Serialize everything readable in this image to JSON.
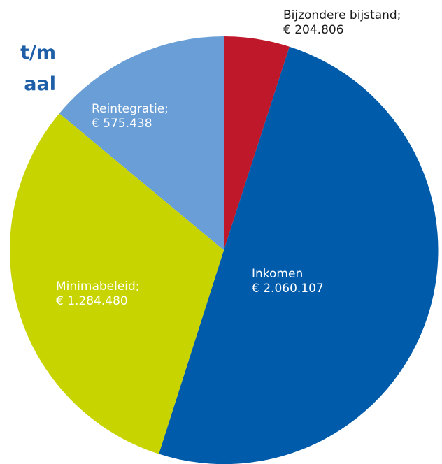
{
  "title": {
    "line1": "t/m",
    "line2": "aal"
  },
  "colors": {
    "bijzondere": "#c0182b",
    "inkomen": "#005baa",
    "minimabeleid": "#c8d400",
    "reintegratie": "#6a9ed6"
  },
  "chart_data": {
    "type": "pie",
    "start": "12 o'clock, clockwise",
    "slices": [
      {
        "key": "bijzondere",
        "label": "Bijzondere bijstand;",
        "value_text": "€ 204.806",
        "value": 204806,
        "color": "#c0182b"
      },
      {
        "key": "inkomen",
        "label": "Inkomen",
        "value_text": "€ 2.060.107",
        "value": 2060107,
        "color": "#005baa"
      },
      {
        "key": "minimabeleid",
        "label": "Minimabeleid;",
        "value_text": "€ 1.284.480",
        "value": 1284480,
        "color": "#c8d400"
      },
      {
        "key": "reintegratie",
        "label": "Reintegratie;",
        "value_text": "€ 575.438",
        "value": 575438,
        "color": "#6a9ed6"
      }
    ]
  }
}
